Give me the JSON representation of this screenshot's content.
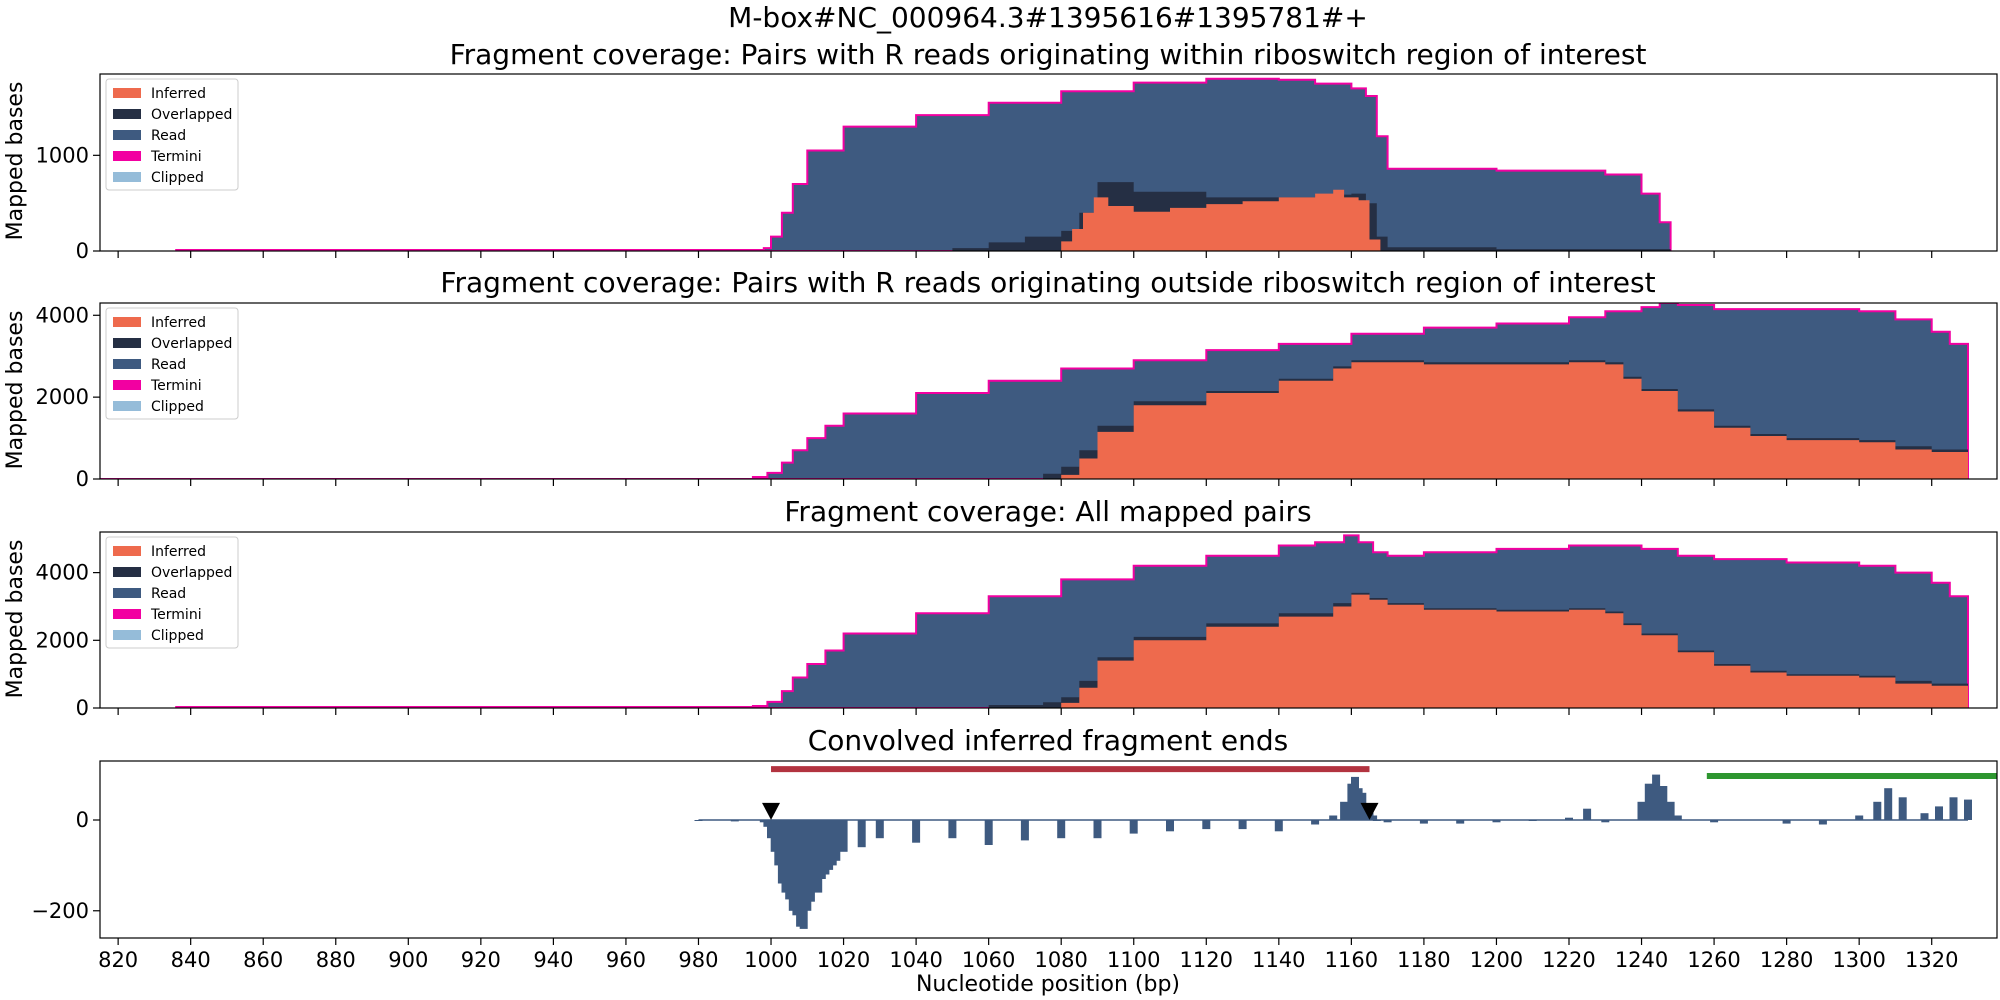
{
  "figure": {
    "suptitle": "M-box#NC_000964.3#1395616#1395781#+",
    "xlabel": "Nucleotide position (bp)"
  },
  "colors": {
    "Inferred": "#ee6a4d",
    "Overlapped": "#252f44",
    "Read": "#3e5a80",
    "Termini": "#f200a1",
    "Clipped": "#95bcd9",
    "bar": "#3e5a80",
    "span_red": "#b2333f",
    "span_green": "#2e9630",
    "marker": "#000000"
  },
  "chart_data": [
    {
      "type": "area",
      "title": "Fragment coverage: Pairs with R reads originating within riboswitch region of interest",
      "ylabel": "Mapped bases",
      "xlim": [
        815,
        1338
      ],
      "ylim": [
        0,
        1850
      ],
      "yticks": [
        0,
        1000
      ],
      "legend": [
        "Inferred",
        "Overlapped",
        "Read",
        "Termini",
        "Clipped"
      ],
      "legend_position": "top-left",
      "series": [
        {
          "name": "Read",
          "x": [
            836,
            890,
            960,
            995,
            998,
            1000,
            1003,
            1006,
            1010,
            1020,
            1040,
            1060,
            1080,
            1100,
            1120,
            1130,
            1140,
            1150,
            1160,
            1164,
            1167,
            1170,
            1200,
            1230,
            1240,
            1245,
            1248
          ],
          "y": [
            10,
            10,
            10,
            10,
            30,
            150,
            400,
            700,
            1050,
            1300,
            1420,
            1550,
            1670,
            1760,
            1800,
            1800,
            1790,
            1750,
            1700,
            1620,
            1200,
            860,
            840,
            800,
            600,
            300,
            0
          ]
        },
        {
          "name": "Overlapped",
          "x": [
            836,
            1040,
            1050,
            1060,
            1070,
            1080,
            1085,
            1090,
            1100,
            1120,
            1140,
            1150,
            1160,
            1164,
            1167,
            1170,
            1200,
            1248
          ],
          "y": [
            0,
            0,
            30,
            90,
            150,
            210,
            400,
            720,
            620,
            560,
            560,
            590,
            600,
            500,
            150,
            40,
            20,
            0
          ]
        },
        {
          "name": "Inferred",
          "x": [
            836,
            1075,
            1080,
            1083,
            1086,
            1089,
            1093,
            1100,
            1110,
            1120,
            1130,
            1140,
            1150,
            1155,
            1158,
            1162,
            1165,
            1168
          ],
          "y": [
            0,
            0,
            100,
            230,
            400,
            560,
            470,
            410,
            450,
            490,
            520,
            560,
            600,
            640,
            560,
            530,
            120,
            0
          ]
        }
      ]
    },
    {
      "type": "area",
      "title": "Fragment coverage: Pairs with R reads originating outside riboswitch region of interest",
      "ylabel": "Mapped bases",
      "xlim": [
        815,
        1338
      ],
      "ylim": [
        0,
        4300
      ],
      "yticks": [
        0,
        2000,
        4000
      ],
      "legend": [
        "Inferred",
        "Overlapped",
        "Read",
        "Termini",
        "Clipped"
      ],
      "legend_position": "top-left",
      "series": [
        {
          "name": "Read",
          "x": [
            809,
            975,
            995,
            999,
            1003,
            1006,
            1010,
            1015,
            1020,
            1040,
            1060,
            1080,
            1100,
            1120,
            1140,
            1160,
            1180,
            1200,
            1220,
            1230,
            1240,
            1245,
            1250,
            1260,
            1280,
            1300,
            1310,
            1320,
            1325,
            1330
          ],
          "y": [
            0,
            0,
            50,
            150,
            400,
            700,
            1000,
            1300,
            1600,
            2100,
            2400,
            2700,
            2900,
            3150,
            3300,
            3550,
            3700,
            3800,
            3950,
            4100,
            4200,
            4300,
            4250,
            4150,
            4150,
            4100,
            3900,
            3600,
            3300,
            2850
          ]
        },
        {
          "name": "Overlapped",
          "x": [
            809,
            1060,
            1075,
            1080,
            1085,
            1090,
            1100,
            1120,
            1140,
            1155,
            1160,
            1180,
            1200,
            1220,
            1230,
            1235,
            1240,
            1250,
            1260,
            1270,
            1280,
            1300,
            1310,
            1320,
            1330
          ],
          "y": [
            0,
            0,
            130,
            300,
            700,
            1300,
            1900,
            2150,
            2450,
            2750,
            2900,
            2850,
            2850,
            2900,
            2850,
            2500,
            2200,
            1700,
            1300,
            1100,
            1000,
            950,
            800,
            720,
            700
          ]
        },
        {
          "name": "Inferred",
          "x": [
            809,
            1075,
            1080,
            1085,
            1090,
            1100,
            1120,
            1140,
            1155,
            1160,
            1180,
            1200,
            1220,
            1230,
            1235,
            1240,
            1250,
            1260,
            1270,
            1280,
            1300,
            1310,
            1320,
            1330
          ],
          "y": [
            0,
            0,
            100,
            500,
            1150,
            1800,
            2100,
            2400,
            2700,
            2850,
            2800,
            2800,
            2850,
            2800,
            2450,
            2150,
            1650,
            1250,
            1050,
            950,
            900,
            720,
            660,
            650
          ]
        }
      ]
    },
    {
      "type": "area",
      "title": "Fragment coverage: All mapped pairs",
      "ylabel": "Mapped bases",
      "xlim": [
        815,
        1338
      ],
      "ylim": [
        0,
        5200
      ],
      "yticks": [
        0,
        2000,
        4000
      ],
      "legend": [
        "Inferred",
        "Overlapped",
        "Read",
        "Termini",
        "Clipped"
      ],
      "legend_position": "top-left",
      "series": [
        {
          "name": "Read",
          "x": [
            836,
            975,
            995,
            999,
            1003,
            1006,
            1010,
            1015,
            1020,
            1040,
            1060,
            1080,
            1100,
            1120,
            1140,
            1150,
            1158,
            1162,
            1166,
            1170,
            1180,
            1200,
            1220,
            1240,
            1250,
            1260,
            1280,
            1300,
            1310,
            1320,
            1325,
            1330
          ],
          "y": [
            30,
            30,
            60,
            180,
            500,
            900,
            1300,
            1700,
            2200,
            2800,
            3300,
            3800,
            4200,
            4500,
            4800,
            4900,
            5100,
            4900,
            4600,
            4500,
            4600,
            4700,
            4800,
            4700,
            4500,
            4400,
            4300,
            4200,
            4000,
            3700,
            3300,
            2850
          ]
        },
        {
          "name": "Overlapped",
          "x": [
            836,
            1040,
            1060,
            1075,
            1080,
            1085,
            1090,
            1100,
            1120,
            1140,
            1155,
            1160,
            1165,
            1170,
            1180,
            1200,
            1220,
            1230,
            1235,
            1240,
            1250,
            1260,
            1270,
            1280,
            1300,
            1310,
            1320,
            1330
          ],
          "y": [
            0,
            0,
            90,
            170,
            320,
            800,
            1500,
            2100,
            2500,
            2800,
            3100,
            3400,
            3250,
            3100,
            2950,
            2900,
            2950,
            2850,
            2500,
            2200,
            1700,
            1300,
            1100,
            1000,
            950,
            800,
            720,
            700
          ]
        },
        {
          "name": "Inferred",
          "x": [
            836,
            1075,
            1080,
            1085,
            1090,
            1100,
            1120,
            1140,
            1155,
            1160,
            1165,
            1170,
            1180,
            1200,
            1220,
            1230,
            1235,
            1240,
            1250,
            1260,
            1270,
            1280,
            1300,
            1310,
            1320,
            1330
          ],
          "y": [
            0,
            0,
            150,
            600,
            1400,
            2000,
            2400,
            2700,
            3000,
            3350,
            3200,
            3050,
            2900,
            2850,
            2900,
            2800,
            2450,
            2150,
            1650,
            1250,
            1050,
            950,
            900,
            720,
            660,
            650
          ]
        }
      ]
    },
    {
      "type": "bar",
      "title": "Convolved inferred fragment ends",
      "xlabel": "Nucleotide position (bp)",
      "xlim": [
        815,
        1338
      ],
      "ylim": [
        -260,
        130
      ],
      "yticks": [
        -200,
        0
      ],
      "xticks": [
        820,
        840,
        860,
        880,
        900,
        920,
        940,
        960,
        980,
        1000,
        1020,
        1040,
        1060,
        1080,
        1100,
        1120,
        1140,
        1160,
        1180,
        1200,
        1220,
        1240,
        1260,
        1280,
        1300,
        1320
      ],
      "x": [
        980,
        990,
        998,
        999,
        1000,
        1001,
        1002,
        1003,
        1004,
        1005,
        1006,
        1007,
        1008,
        1009,
        1010,
        1011,
        1012,
        1013,
        1014,
        1015,
        1016,
        1017,
        1018,
        1020,
        1025,
        1030,
        1040,
        1050,
        1060,
        1070,
        1080,
        1090,
        1100,
        1110,
        1120,
        1130,
        1140,
        1150,
        1155,
        1158,
        1160,
        1161,
        1162,
        1163,
        1164,
        1165,
        1166,
        1167,
        1170,
        1180,
        1190,
        1200,
        1210,
        1220,
        1225,
        1230,
        1240,
        1242,
        1244,
        1246,
        1248,
        1250,
        1260,
        1280,
        1290,
        1300,
        1305,
        1308,
        1312,
        1318,
        1322,
        1326,
        1330
      ],
      "values": [
        -2,
        -3,
        -5,
        -15,
        -40,
        -70,
        -100,
        -140,
        -160,
        -175,
        -200,
        -210,
        -235,
        -240,
        -200,
        -180,
        -150,
        -160,
        -130,
        -120,
        -110,
        -100,
        -90,
        -70,
        -60,
        -40,
        -50,
        -40,
        -55,
        -45,
        -40,
        -40,
        -30,
        -25,
        -20,
        -20,
        -25,
        -10,
        10,
        40,
        80,
        95,
        70,
        60,
        30,
        20,
        10,
        0,
        -5,
        -8,
        -8,
        -5,
        -2,
        5,
        25,
        -5,
        40,
        80,
        100,
        75,
        40,
        10,
        -5,
        -8,
        -10,
        10,
        40,
        70,
        50,
        15,
        30,
        50,
        45
      ],
      "annotations": [
        {
          "type": "span",
          "color": "span_red",
          "x_start": 1000,
          "x_end": 1165,
          "y": 112
        },
        {
          "type": "span",
          "color": "span_green",
          "x_start": 1258,
          "x_end": 1338,
          "y": 97
        },
        {
          "type": "marker",
          "shape": "triangle-down",
          "x": 1000,
          "y": 20
        },
        {
          "type": "marker",
          "shape": "triangle-down",
          "x": 1165,
          "y": 20
        }
      ]
    }
  ]
}
